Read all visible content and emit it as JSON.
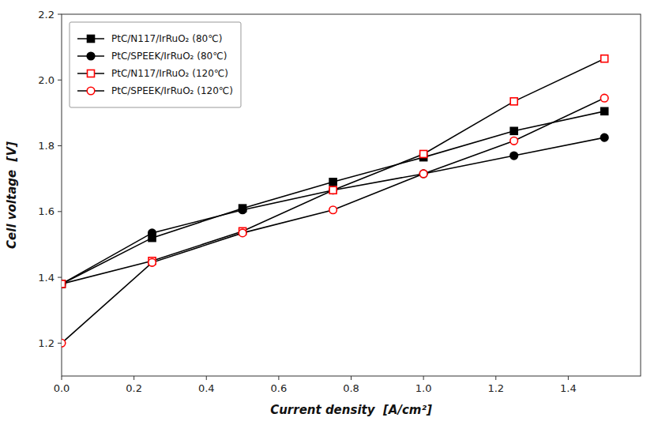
{
  "chart_data": {
    "type": "line",
    "x_label": "Current density  [A/cm²]",
    "y_label": "Cell voltage  [V]",
    "x": [
      0.0,
      0.25,
      0.5,
      0.75,
      1.0,
      1.25,
      1.5
    ],
    "color": "black",
    "series": [
      {
        "name": "PtC/N117/IrRuO₂ (80℃)",
        "color": "black",
        "marker": "square",
        "values": [
          1.38,
          1.52,
          1.61,
          1.69,
          1.765,
          1.845,
          1.905
        ]
      },
      {
        "name": "PtC/SPEEK/IrRuO₂ (80℃)",
        "color": "black",
        "marker": "circle",
        "values": [
          1.38,
          1.535,
          1.605,
          1.665,
          1.715,
          1.77,
          1.825
        ]
      },
      {
        "name": "PtC/N117/IrRuO₂ (120℃)",
        "color": "#ff0000",
        "marker": "open-square",
        "values": [
          1.38,
          1.45,
          1.54,
          1.665,
          1.775,
          1.935,
          2.065
        ]
      },
      {
        "name": "PtC/SPEEK/IrRuO₂ (120℃)",
        "color": "#ff0000",
        "marker": "open-circle",
        "values": [
          1.2,
          1.445,
          1.535,
          1.605,
          1.715,
          1.815,
          1.945
        ]
      }
    ],
    "xlim": [
      0.0,
      1.6
    ],
    "ylim": [
      1.1,
      2.2
    ],
    "xticks": [
      {
        "value": 0.0,
        "label": "0.0"
      },
      0.2,
      0.4,
      0.6,
      0.8,
      {
        "value": 1.0,
        "label": "1.0"
      },
      1.2,
      1.4
    ],
    "yticks": [
      1.2,
      1.4,
      1.6,
      1.8,
      {
        "value": 2.0,
        "label": "2.0"
      },
      2.2
    ],
    "grid": false,
    "legend": "upper left"
  }
}
